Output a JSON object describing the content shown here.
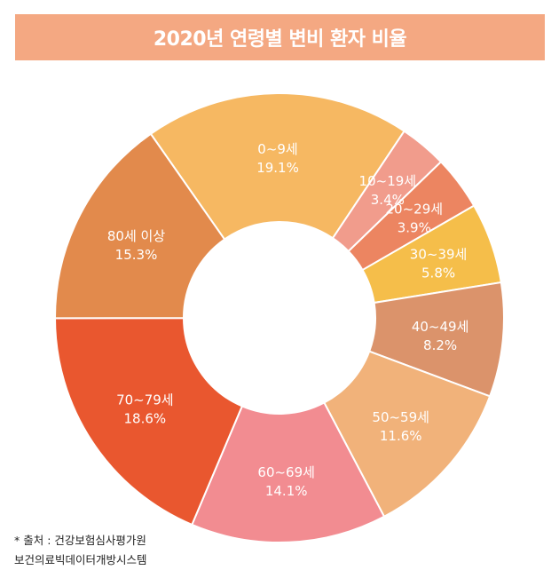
{
  "header": {
    "title": "2020년 연령별 변비 환자 비율"
  },
  "chart_data": {
    "type": "pie",
    "variant": "donut",
    "title": "2020년 연령별 변비 환자 비율",
    "slices": [
      {
        "label": "0~9세",
        "value": 19.1,
        "value_label": "19.1%",
        "color": "#f6b862"
      },
      {
        "label": "10~19세",
        "value": 3.4,
        "value_label": "3.4%",
        "color": "#f19c8c"
      },
      {
        "label": "20~29세",
        "value": 3.9,
        "value_label": "3.9%",
        "color": "#ec8561"
      },
      {
        "label": "30~39세",
        "value": 5.8,
        "value_label": "5.8%",
        "color": "#f5be4a"
      },
      {
        "label": "40~49세",
        "value": 8.2,
        "value_label": "8.2%",
        "color": "#db936b"
      },
      {
        "label": "50~59세",
        "value": 11.6,
        "value_label": "11.6%",
        "color": "#f1b27a"
      },
      {
        "label": "60~69세",
        "value": 14.1,
        "value_label": "14.1%",
        "color": "#f28c91"
      },
      {
        "label": "70~79세",
        "value": 18.6,
        "value_label": "18.6%",
        "color": "#e9572f"
      },
      {
        "label": "80세 이상",
        "value": 15.3,
        "value_label": "15.3%",
        "color": "#e28a4c"
      }
    ]
  },
  "source": {
    "line1": "* 출처 : 건강보험심사평가원",
    "line2": "보건의료빅데이터개방시스템"
  }
}
